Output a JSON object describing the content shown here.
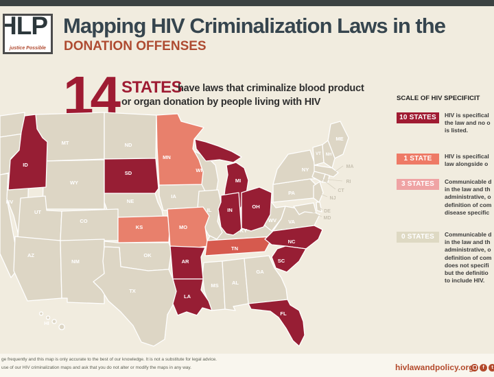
{
  "header": {
    "logo_letters": "HLP",
    "logo_tagline": "justice Possible",
    "title": "Mapping HIV Criminalization Laws in the",
    "subtitle": "DONATION OFFENSES"
  },
  "headline": {
    "number": "14",
    "states_label": "STATES",
    "line1": "have laws that criminalize blood product",
    "line2": "or organ donation by people living with HIV"
  },
  "legend": {
    "title": "SCALE OF HIV SPECIFICIT",
    "items": [
      {
        "badge": "10 STATES",
        "badge_color": "#a01b32",
        "lines": [
          "HIV is specifical",
          "the law and no o",
          "is listed."
        ]
      },
      {
        "badge": "1 STATE",
        "badge_color": "#ee7a66",
        "lines": [
          "HIV is specifical",
          "law alongside o"
        ]
      },
      {
        "badge": "3 STATES",
        "badge_color": "#efa3a4",
        "lines": [
          "Communicable d",
          "in the law and th",
          "administrative, o",
          "definition of com",
          "disease specific"
        ]
      },
      {
        "badge": "0 STATES",
        "badge_color": "#ded9c3",
        "lines": [
          "Communicable d",
          "in the law and th",
          "administrative, o",
          "definition of com",
          "does not specifi",
          "but the definitio",
          "to include HIV."
        ]
      }
    ]
  },
  "map": {
    "colors": {
      "c10": "#971e34",
      "c1": "#d65a4e",
      "c3": "#e8806c",
      "base": "#ddd6c5",
      "border": "#ffffff",
      "label_on_state": "#ffffff",
      "label_offshore": "#c7c1b1"
    },
    "states": [
      {
        "abbr": "WA",
        "category": "base",
        "label": false
      },
      {
        "abbr": "OR",
        "category": "base",
        "label": false
      },
      {
        "abbr": "CA",
        "category": "base",
        "label": false
      },
      {
        "abbr": "NV",
        "category": "base",
        "label": true
      },
      {
        "abbr": "ID",
        "category": "c10",
        "label": true
      },
      {
        "abbr": "MT",
        "category": "base",
        "label": true
      },
      {
        "abbr": "ND",
        "category": "base",
        "label": true
      },
      {
        "abbr": "MN",
        "category": "c3",
        "label": true
      },
      {
        "abbr": "WI",
        "category": "base",
        "label": true
      },
      {
        "abbr": "MI",
        "category": "c10",
        "label": true
      },
      {
        "abbr": "SD",
        "category": "c10",
        "label": true
      },
      {
        "abbr": "NE",
        "category": "base",
        "label": true
      },
      {
        "abbr": "IA",
        "category": "base",
        "label": true
      },
      {
        "abbr": "WY",
        "category": "base",
        "label": true
      },
      {
        "abbr": "UT",
        "category": "base",
        "label": true
      },
      {
        "abbr": "CO",
        "category": "base",
        "label": true
      },
      {
        "abbr": "KS",
        "category": "c3",
        "label": true
      },
      {
        "abbr": "MO",
        "category": "c3",
        "label": true
      },
      {
        "abbr": "AZ",
        "category": "base",
        "label": true
      },
      {
        "abbr": "NM",
        "category": "base",
        "label": true
      },
      {
        "abbr": "OK",
        "category": "base",
        "label": true
      },
      {
        "abbr": "TX",
        "category": "base",
        "label": true
      },
      {
        "abbr": "HI",
        "category": "base",
        "label": true
      },
      {
        "abbr": "AR",
        "category": "c10",
        "label": true
      },
      {
        "abbr": "LA",
        "category": "c10",
        "label": true
      },
      {
        "abbr": "MS",
        "category": "base",
        "label": true
      },
      {
        "abbr": "AL",
        "category": "base",
        "label": true
      },
      {
        "abbr": "GA",
        "category": "base",
        "label": true
      },
      {
        "abbr": "FL",
        "category": "c10",
        "label": true
      },
      {
        "abbr": "TN",
        "category": "c1",
        "label": true
      },
      {
        "abbr": "KY",
        "category": "base",
        "label": true
      },
      {
        "abbr": "IL",
        "category": "base",
        "label": true
      },
      {
        "abbr": "IN",
        "category": "c10",
        "label": true
      },
      {
        "abbr": "OH",
        "category": "c10",
        "label": true
      },
      {
        "abbr": "WV",
        "category": "base",
        "label": true
      },
      {
        "abbr": "VA",
        "category": "base",
        "label": true
      },
      {
        "abbr": "NC",
        "category": "c10",
        "label": true
      },
      {
        "abbr": "SC",
        "category": "c10",
        "label": true
      },
      {
        "abbr": "PA",
        "category": "base",
        "label": true
      },
      {
        "abbr": "NY",
        "category": "base",
        "label": true
      },
      {
        "abbr": "NJ",
        "category": "base",
        "label": false
      },
      {
        "abbr": "ME",
        "category": "base",
        "label": true
      },
      {
        "abbr": "VT",
        "category": "base",
        "label": true
      },
      {
        "abbr": "NH",
        "category": "base",
        "label": true
      },
      {
        "abbr": "MA",
        "category": "base",
        "label": false
      },
      {
        "abbr": "CT",
        "category": "base",
        "label": false
      },
      {
        "abbr": "RI",
        "category": "base",
        "label": false
      },
      {
        "abbr": "MD",
        "category": "base",
        "label": false
      },
      {
        "abbr": "DE",
        "category": "base",
        "label": false
      }
    ],
    "offshore_labels": [
      "MA",
      "RI",
      "CT",
      "NJ",
      "DE",
      "MD"
    ]
  },
  "footer": {
    "line1": "ge frequently and this map is only accurate to the best of our knowledge. It is not a substitute for legal advice.",
    "line2": "use of our HIV criminalization maps and ask that you do not alter or modify the maps in any way.",
    "site": "hivlawandpolicy.org",
    "social": [
      "instagram",
      "facebook",
      "twitter"
    ]
  }
}
